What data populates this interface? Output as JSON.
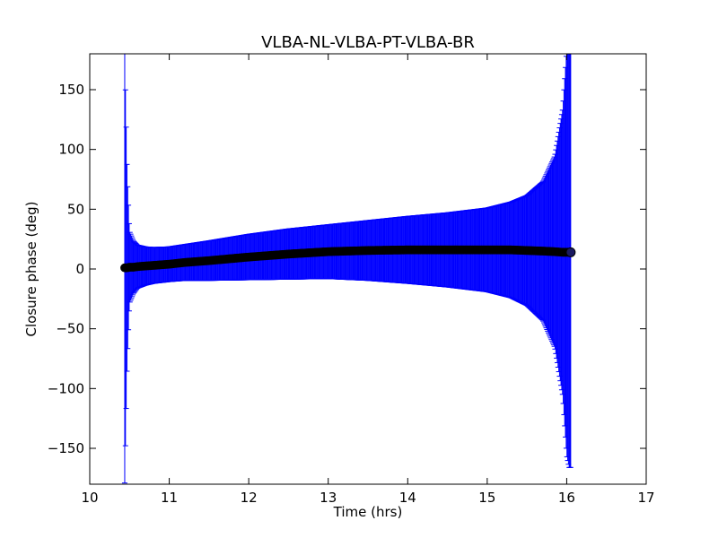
{
  "chart_data": {
    "type": "scatter",
    "title": "VLBA-NL-VLBA-PT-VLBA-BR",
    "xlabel": "Time (hrs)",
    "ylabel": "Closure phase (deg)",
    "xlim": [
      10,
      17
    ],
    "ylim": [
      -180,
      180
    ],
    "xticks": [
      10,
      11,
      12,
      13,
      14,
      15,
      16,
      17
    ],
    "yticks": [
      -150,
      -100,
      -50,
      0,
      50,
      100,
      150
    ],
    "xtick_labels": [
      "10",
      "11",
      "12",
      "13",
      "14",
      "15",
      "16",
      "17"
    ],
    "ytick_labels": [
      "−150",
      "−100",
      "−50",
      "0",
      "50",
      "100",
      "150"
    ],
    "grid": false,
    "legend": "none",
    "series": [
      {
        "marker": "circle",
        "color": "#000000",
        "errorbar_color": "#0000ff",
        "x": [
          10.44,
          10.47,
          10.5,
          10.55,
          10.6,
          10.7,
          10.8,
          11.0,
          11.2,
          11.5,
          12.0,
          12.5,
          13.0,
          13.5,
          14.0,
          14.5,
          15.0,
          15.3,
          15.5,
          15.7,
          15.85,
          15.95,
          16.0,
          16.03,
          16.05
        ],
        "y": [
          1,
          1,
          1.5,
          1.5,
          2,
          2.5,
          3,
          4,
          5.5,
          7,
          10,
          12.5,
          14.5,
          15.5,
          16,
          16,
          16,
          16,
          15.5,
          15,
          14.5,
          14,
          14,
          14,
          14
        ],
        "yerr": [
          180,
          80,
          30,
          22,
          18,
          16,
          15,
          14.5,
          15,
          16.5,
          19,
          21,
          22.5,
          25,
          28,
          31,
          35,
          40,
          46,
          58,
          80,
          120,
          170,
          180,
          180
        ]
      }
    ]
  }
}
